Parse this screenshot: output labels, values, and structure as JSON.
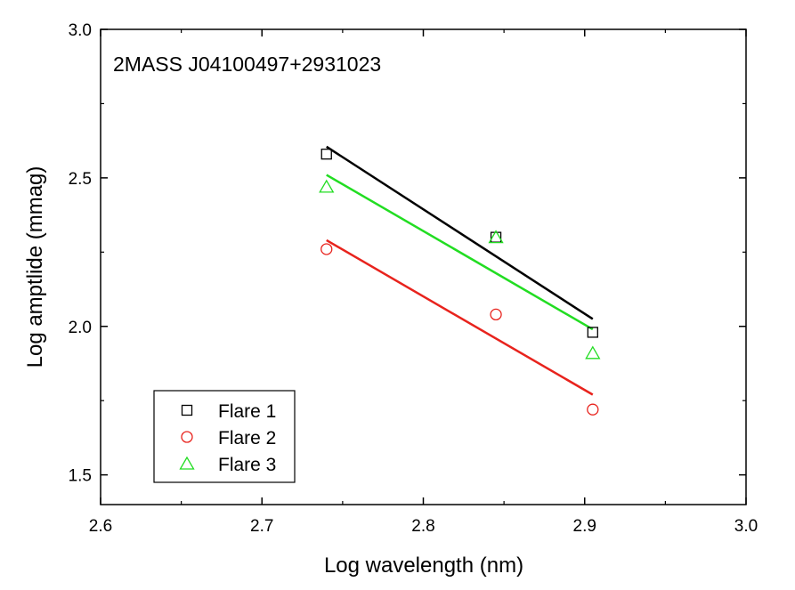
{
  "chart_data": {
    "type": "scatter",
    "annotation": "2MASS J04100497+2931023",
    "xlabel": "Log wavelength (nm)",
    "ylabel": "Log amptlide (mmag)",
    "xlim": [
      2.6,
      3.0
    ],
    "ylim": [
      1.4,
      3.0
    ],
    "xticks": [
      2.6,
      2.7,
      2.8,
      2.9,
      3.0
    ],
    "xtick_labels": [
      "2.6",
      "2.7",
      "2.8",
      "2.9",
      "3.0"
    ],
    "yticks": [
      1.5,
      2.0,
      2.5,
      3.0
    ],
    "ytick_labels": [
      "1.5",
      "2.0",
      "2.5",
      "3.0"
    ],
    "grid": false,
    "legend_position": "bottom-left",
    "series": [
      {
        "name": "Flare 1",
        "marker": "square",
        "color": "#000000",
        "x": [
          2.74,
          2.845,
          2.905
        ],
        "y": [
          2.58,
          2.3,
          1.98
        ],
        "fit": {
          "x": [
            2.74,
            2.905
          ],
          "y": [
            2.605,
            2.025
          ]
        }
      },
      {
        "name": "Flare 2",
        "marker": "circle",
        "color": "#e8231d",
        "x": [
          2.74,
          2.845,
          2.905
        ],
        "y": [
          2.26,
          2.04,
          1.72
        ],
        "fit": {
          "x": [
            2.74,
            2.905
          ],
          "y": [
            2.29,
            1.77
          ]
        }
      },
      {
        "name": "Flare 3",
        "marker": "triangle",
        "color": "#22dd22",
        "x": [
          2.74,
          2.845,
          2.905
        ],
        "y": [
          2.47,
          2.3,
          1.91
        ],
        "fit": {
          "x": [
            2.74,
            2.905
          ],
          "y": [
            2.51,
            1.99
          ]
        }
      }
    ]
  }
}
